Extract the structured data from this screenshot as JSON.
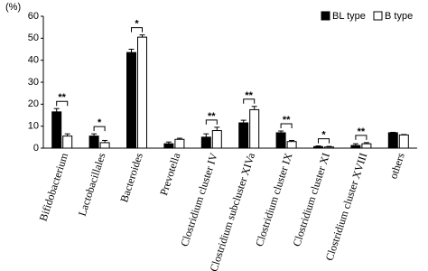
{
  "chart_data": {
    "type": "bar",
    "y_label": "(%)",
    "categories": [
      "Bifidobacterium",
      "Lactobacillales",
      "Bacteroides",
      "Prevotella",
      "Clostridium cluster IV",
      "Clostridium subcluster XIVa",
      "Clostridium cluster IX",
      "Clostridium cluster XI",
      "Clostridium cluster XVIII",
      "others"
    ],
    "series": [
      {
        "name": "BL type",
        "color": "#000000",
        "values": [
          16.5,
          5.5,
          43.5,
          2,
          5,
          11.5,
          7,
          0.7,
          1.2,
          7
        ],
        "errors": [
          1.5,
          1,
          1.5,
          0.8,
          1.5,
          1.2,
          0.8,
          0.3,
          0.8,
          0.2
        ]
      },
      {
        "name": "B type",
        "color": "#ffffff",
        "values": [
          5.5,
          2.5,
          50.5,
          4,
          8,
          17.5,
          3,
          0.5,
          2,
          6
        ],
        "errors": [
          1,
          1,
          1,
          0.5,
          1.5,
          1.5,
          0.5,
          0.3,
          0.5,
          0.2
        ]
      }
    ],
    "significance": [
      "**",
      "*",
      "*",
      null,
      "**",
      "**",
      "**",
      "*",
      "**",
      null
    ],
    "ylim": [
      0,
      60
    ],
    "yticks": [
      0,
      10,
      20,
      30,
      40,
      50,
      60
    ],
    "legend": "top-right"
  }
}
